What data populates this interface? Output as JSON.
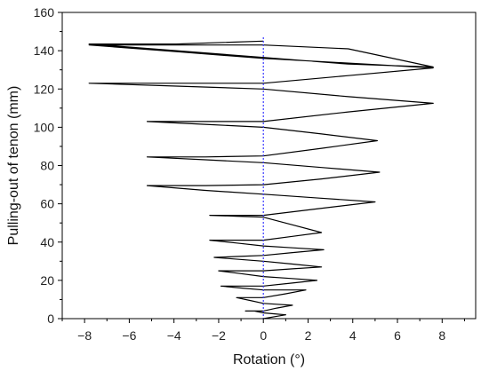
{
  "chart_data": {
    "type": "line",
    "title": "",
    "xlabel": "Rotation (°)",
    "ylabel": "Pulling-out of tenon (mm)",
    "xlim": [
      -9,
      9.5
    ],
    "ylim": [
      0,
      160
    ],
    "xticks": [
      -8,
      -6,
      -4,
      -2,
      0,
      2,
      4,
      6,
      8
    ],
    "yticks": [
      0,
      20,
      40,
      60,
      80,
      100,
      120,
      140,
      160
    ],
    "reference_line": {
      "x": 0,
      "style": "dotted",
      "color": "#3a3aff"
    },
    "line_color": "#000000",
    "grid": false,
    "legend": "none",
    "series": [
      {
        "x": [
          0.0,
          0.5,
          1.0,
          0.5,
          0.0,
          -0.4,
          -0.8,
          -0.4,
          0.0,
          0.6,
          1.3,
          0.6,
          0.0,
          -0.6,
          -1.2,
          -0.6,
          0.0,
          1.0,
          1.9,
          1.0,
          0.0,
          -1.0,
          -1.9,
          -1.0,
          0.0,
          1.2,
          2.4,
          1.2,
          0.0,
          -1.0,
          -2.0,
          -1.0,
          0.0,
          1.3,
          2.6,
          1.3,
          0.0,
          -1.1,
          -2.2,
          -1.1,
          0.0,
          1.3,
          2.7,
          1.3,
          0.0,
          -1.2,
          -2.4,
          -1.2,
          0.0,
          1.3,
          2.6,
          1.3,
          0.0,
          -1.2,
          -2.4,
          -1.2,
          0.0,
          2.5,
          5.0,
          2.5,
          0.0,
          -2.6,
          -5.2,
          -2.6,
          0.0,
          2.6,
          5.2,
          2.6,
          0.0,
          -2.6,
          -5.2,
          -2.6,
          0.0,
          2.6,
          5.1,
          2.6,
          0.0,
          -2.6,
          -5.2,
          -2.6,
          0.0,
          3.8,
          7.6,
          3.8,
          0.0,
          -3.9,
          -7.8,
          -3.9,
          0.0,
          3.8,
          7.6,
          3.8,
          0.0,
          -3.9,
          -7.8,
          -3.9,
          0.0,
          3.8,
          7.6,
          3.8,
          0.0,
          -3.9,
          -7.8,
          -3.9,
          0.0
        ],
        "y": [
          0.0,
          1.0,
          2.0,
          2.5,
          3.0,
          4.0,
          4.0,
          4.0,
          4.0,
          5.5,
          7.0,
          7.5,
          8.0,
          9.5,
          11.0,
          11.0,
          11.0,
          13.0,
          15.0,
          15.0,
          15.0,
          16.0,
          17.0,
          17.0,
          17.0,
          18.5,
          20.0,
          21.0,
          22.0,
          23.5,
          25.0,
          25.0,
          25.0,
          26.0,
          27.0,
          28.5,
          30.0,
          31.0,
          32.0,
          32.5,
          33.0,
          34.5,
          36.0,
          37.0,
          38.0,
          39.5,
          41.0,
          41.0,
          41.0,
          43.0,
          45.0,
          49.0,
          53.0,
          53.5,
          54.0,
          54.0,
          54.0,
          57.5,
          61.0,
          63.0,
          65.0,
          67.0,
          69.5,
          69.5,
          70.0,
          73.0,
          76.5,
          79.0,
          81.5,
          83.0,
          84.5,
          84.5,
          85.0,
          89.0,
          93.0,
          96.5,
          100.0,
          101.5,
          103.0,
          103.0,
          103.0,
          108.0,
          112.5,
          116.0,
          120.0,
          121.5,
          123.0,
          123.0,
          123.0,
          127.0,
          131.0,
          133.5,
          136.0,
          139.5,
          143.0,
          143.0,
          143.0,
          141.0,
          131.5,
          133.0,
          136.5,
          140.0,
          143.5,
          143.5,
          145.0
        ]
      }
    ]
  }
}
